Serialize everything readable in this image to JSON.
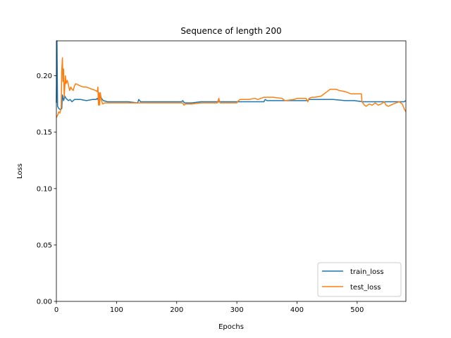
{
  "chart_data": {
    "type": "line",
    "title": "Sequence of length 200",
    "xlabel": "Epochs",
    "ylabel": "Loss",
    "xlim": [
      0,
      581
    ],
    "ylim": [
      0.0,
      0.231
    ],
    "xticks": [
      0,
      100,
      200,
      300,
      400,
      500
    ],
    "xtick_labels": [
      "0",
      "100",
      "200",
      "300",
      "400",
      "500"
    ],
    "yticks": [
      0.0,
      0.05,
      0.1,
      0.15,
      0.2
    ],
    "ytick_labels": [
      "0.00",
      "0.05",
      "0.10",
      "0.15",
      "0.20"
    ],
    "grid": false,
    "legend_position": "lower right",
    "series": [
      {
        "name": "train_loss",
        "color": "#1f77b4",
        "points": [
          [
            0,
            0.176
          ],
          [
            1,
            0.231
          ],
          [
            2,
            0.173
          ],
          [
            4,
            0.171
          ],
          [
            7,
            0.17
          ],
          [
            9,
            0.171
          ],
          [
            10,
            0.183
          ],
          [
            12,
            0.178
          ],
          [
            14,
            0.182
          ],
          [
            16,
            0.18
          ],
          [
            18,
            0.179
          ],
          [
            20,
            0.178
          ],
          [
            23,
            0.179
          ],
          [
            26,
            0.177
          ],
          [
            30,
            0.179
          ],
          [
            40,
            0.179
          ],
          [
            50,
            0.178
          ],
          [
            60,
            0.179
          ],
          [
            66,
            0.179
          ],
          [
            68,
            0.18
          ],
          [
            70,
            0.178
          ],
          [
            73,
            0.183
          ],
          [
            75,
            0.18
          ],
          [
            78,
            0.178
          ],
          [
            85,
            0.177
          ],
          [
            100,
            0.177
          ],
          [
            120,
            0.177
          ],
          [
            135,
            0.176
          ],
          [
            137,
            0.179
          ],
          [
            140,
            0.177
          ],
          [
            160,
            0.177
          ],
          [
            180,
            0.177
          ],
          [
            200,
            0.177
          ],
          [
            208,
            0.177
          ],
          [
            210,
            0.178
          ],
          [
            213,
            0.176
          ],
          [
            225,
            0.176
          ],
          [
            240,
            0.177
          ],
          [
            260,
            0.177
          ],
          [
            280,
            0.177
          ],
          [
            300,
            0.177
          ],
          [
            320,
            0.177
          ],
          [
            345,
            0.177
          ],
          [
            347,
            0.179
          ],
          [
            350,
            0.178
          ],
          [
            370,
            0.178
          ],
          [
            400,
            0.178
          ],
          [
            418,
            0.178
          ],
          [
            420,
            0.179
          ],
          [
            440,
            0.179
          ],
          [
            460,
            0.179
          ],
          [
            480,
            0.178
          ],
          [
            495,
            0.178
          ],
          [
            510,
            0.177
          ],
          [
            530,
            0.177
          ],
          [
            550,
            0.177
          ],
          [
            570,
            0.177
          ],
          [
            578,
            0.177
          ],
          [
            581,
            0.178
          ]
        ]
      },
      {
        "name": "test_loss",
        "color": "#ff7f0e",
        "points": [
          [
            0,
            0.163
          ],
          [
            2,
            0.165
          ],
          [
            4,
            0.168
          ],
          [
            6,
            0.167
          ],
          [
            8,
            0.172
          ],
          [
            9,
            0.205
          ],
          [
            10,
            0.216
          ],
          [
            11,
            0.195
          ],
          [
            12,
            0.206
          ],
          [
            13,
            0.181
          ],
          [
            14,
            0.19
          ],
          [
            15,
            0.2
          ],
          [
            16,
            0.193
          ],
          [
            18,
            0.196
          ],
          [
            20,
            0.192
          ],
          [
            22,
            0.187
          ],
          [
            24,
            0.19
          ],
          [
            26,
            0.188
          ],
          [
            28,
            0.187
          ],
          [
            30,
            0.191
          ],
          [
            32,
            0.193
          ],
          [
            36,
            0.192
          ],
          [
            40,
            0.191
          ],
          [
            45,
            0.19
          ],
          [
            50,
            0.19
          ],
          [
            55,
            0.189
          ],
          [
            60,
            0.188
          ],
          [
            65,
            0.187
          ],
          [
            68,
            0.186
          ],
          [
            69,
            0.19
          ],
          [
            70,
            0.174
          ],
          [
            71,
            0.185
          ],
          [
            72,
            0.174
          ],
          [
            73,
            0.185
          ],
          [
            75,
            0.178
          ],
          [
            77,
            0.175
          ],
          [
            80,
            0.176
          ],
          [
            90,
            0.176
          ],
          [
            100,
            0.176
          ],
          [
            120,
            0.176
          ],
          [
            140,
            0.176
          ],
          [
            160,
            0.176
          ],
          [
            180,
            0.176
          ],
          [
            200,
            0.176
          ],
          [
            210,
            0.176
          ],
          [
            212,
            0.174
          ],
          [
            215,
            0.175
          ],
          [
            225,
            0.175
          ],
          [
            240,
            0.176
          ],
          [
            260,
            0.176
          ],
          [
            268,
            0.176
          ],
          [
            270,
            0.18
          ],
          [
            272,
            0.176
          ],
          [
            285,
            0.176
          ],
          [
            300,
            0.176
          ],
          [
            301,
            0.177
          ],
          [
            305,
            0.179
          ],
          [
            320,
            0.179
          ],
          [
            330,
            0.18
          ],
          [
            335,
            0.179
          ],
          [
            340,
            0.18
          ],
          [
            345,
            0.181
          ],
          [
            360,
            0.181
          ],
          [
            375,
            0.18
          ],
          [
            380,
            0.178
          ],
          [
            395,
            0.179
          ],
          [
            400,
            0.18
          ],
          [
            410,
            0.18
          ],
          [
            415,
            0.18
          ],
          [
            418,
            0.177
          ],
          [
            420,
            0.18
          ],
          [
            425,
            0.181
          ],
          [
            430,
            0.181
          ],
          [
            440,
            0.182
          ],
          [
            445,
            0.184
          ],
          [
            450,
            0.186
          ],
          [
            455,
            0.188
          ],
          [
            465,
            0.188
          ],
          [
            470,
            0.187
          ],
          [
            480,
            0.186
          ],
          [
            485,
            0.185
          ],
          [
            490,
            0.184
          ],
          [
            500,
            0.184
          ],
          [
            507,
            0.184
          ],
          [
            508,
            0.177
          ],
          [
            512,
            0.174
          ],
          [
            515,
            0.173
          ],
          [
            520,
            0.175
          ],
          [
            525,
            0.174
          ],
          [
            530,
            0.176
          ],
          [
            535,
            0.174
          ],
          [
            540,
            0.175
          ],
          [
            545,
            0.177
          ],
          [
            548,
            0.174
          ],
          [
            552,
            0.173
          ],
          [
            556,
            0.174
          ],
          [
            560,
            0.175
          ],
          [
            565,
            0.176
          ],
          [
            570,
            0.177
          ],
          [
            575,
            0.175
          ],
          [
            578,
            0.171
          ],
          [
            581,
            0.168
          ]
        ]
      }
    ]
  }
}
